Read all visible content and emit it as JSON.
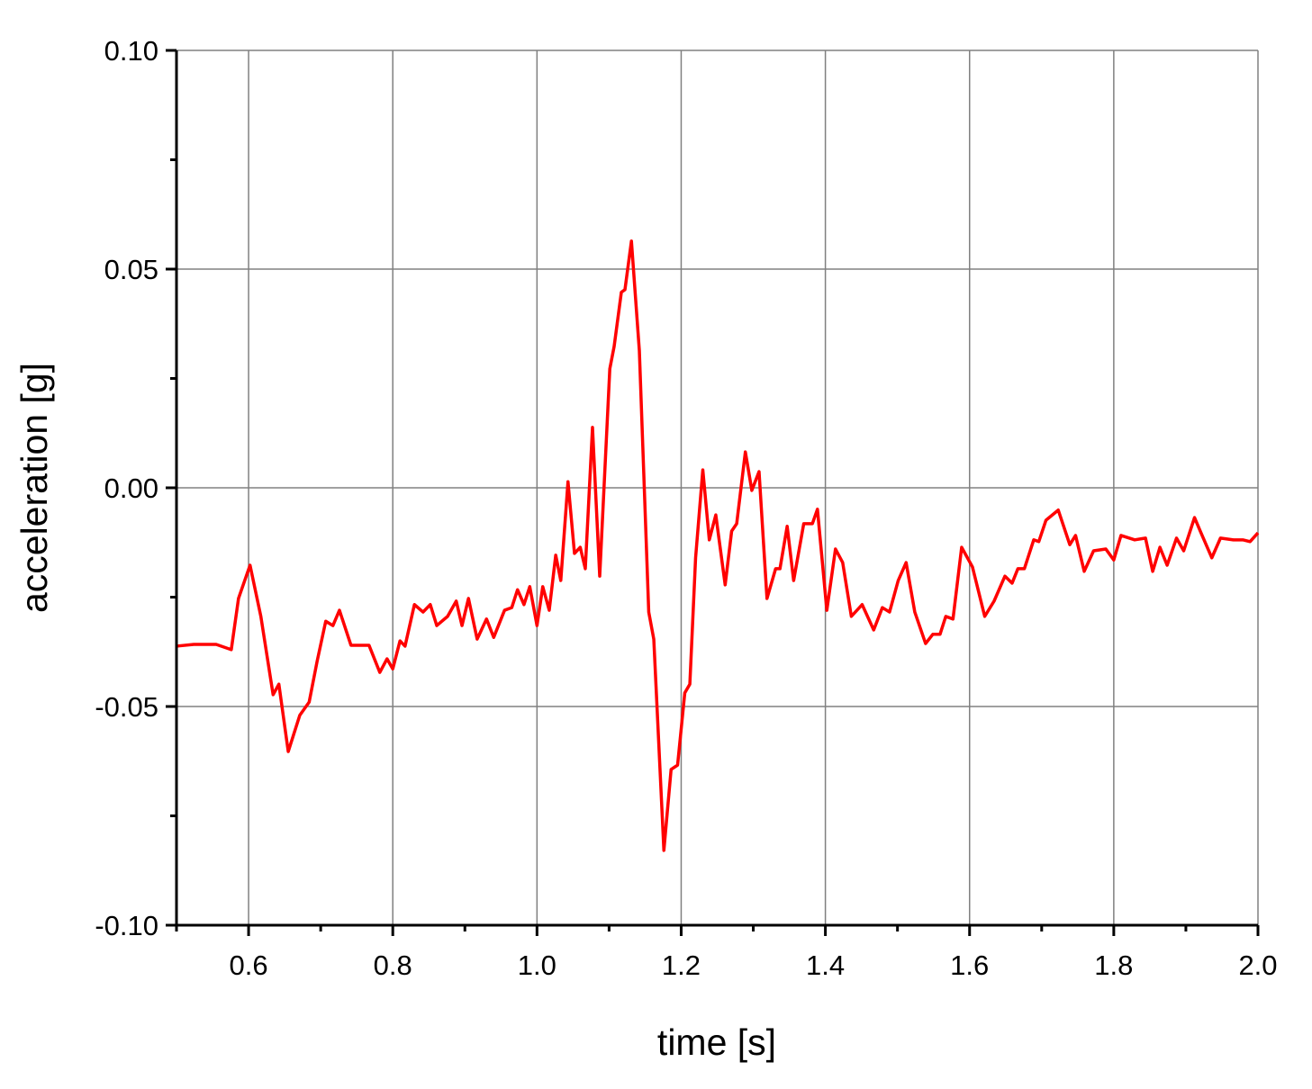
{
  "chart_data": {
    "type": "line",
    "xlabel": "time [s]",
    "ylabel": "acceleration [g]",
    "xlim": [
      0.5,
      2.0
    ],
    "ylim": [
      -0.1,
      0.1
    ],
    "xticks": [
      0.6,
      0.8,
      {
        "value": 1.0,
        "label": "1.0"
      },
      1.2,
      1.4,
      1.6,
      1.8,
      {
        "value": 2.0,
        "label": "2.0"
      }
    ],
    "yticks": [
      {
        "value": -0.1,
        "label": "-0.10"
      },
      {
        "value": -0.05,
        "label": "-0.05"
      },
      {
        "value": 0,
        "label": "0.00"
      },
      {
        "value": 0.05,
        "label": "0.05"
      },
      {
        "value": 0.1,
        "label": "0.10"
      }
    ],
    "xminor_ticks": [
      0.5,
      0.7,
      0.9,
      1.1,
      1.3,
      1.5,
      1.7,
      1.9
    ],
    "yminor_ticks": [
      -0.075,
      -0.025,
      0.025,
      0.075
    ],
    "grid": true,
    "series": [
      {
        "name": "acceleration",
        "color": "#ff0000",
        "x": [
          0.5,
          0.524,
          0.555,
          0.576,
          0.586,
          0.602,
          0.617,
          0.634,
          0.642,
          0.655,
          0.671,
          0.684,
          0.695,
          0.707,
          0.717,
          0.726,
          0.742,
          0.767,
          0.782,
          0.792,
          0.8,
          0.81,
          0.817,
          0.83,
          0.842,
          0.852,
          0.861,
          0.876,
          0.888,
          0.896,
          0.905,
          0.917,
          0.93,
          0.94,
          0.955,
          0.965,
          0.973,
          0.982,
          0.99,
          1.0,
          1.008,
          1.017,
          1.026,
          1.033,
          1.043,
          1.052,
          1.06,
          1.067,
          1.077,
          1.087,
          1.101,
          1.107,
          1.117,
          1.122,
          1.131,
          1.142,
          1.155,
          1.162,
          1.176,
          1.186,
          1.195,
          1.205,
          1.212,
          1.22,
          1.23,
          1.239,
          1.248,
          1.261,
          1.27,
          1.277,
          1.289,
          1.298,
          1.308,
          1.319,
          1.331,
          1.337,
          1.347,
          1.356,
          1.37,
          1.382,
          1.389,
          1.402,
          1.414,
          1.424,
          1.436,
          1.451,
          1.467,
          1.479,
          1.489,
          1.501,
          1.512,
          1.524,
          1.539,
          1.549,
          1.559,
          1.567,
          1.577,
          1.589,
          1.604,
          1.621,
          1.634,
          1.649,
          1.659,
          1.667,
          1.676,
          1.689,
          1.696,
          1.706,
          1.723,
          1.739,
          1.747,
          1.759,
          1.772,
          1.789,
          1.8,
          1.81,
          1.829,
          1.844,
          1.854,
          1.864,
          1.874,
          1.887,
          1.897,
          1.912,
          1.921,
          1.936,
          1.948,
          1.966,
          1.979,
          1.989,
          2.0
        ],
        "values": [
          -0.0362,
          -0.0358,
          -0.0358,
          -0.037,
          -0.0253,
          -0.0177,
          -0.0294,
          -0.0473,
          -0.0449,
          -0.0603,
          -0.052,
          -0.049,
          -0.0397,
          -0.0305,
          -0.0315,
          -0.028,
          -0.036,
          -0.036,
          -0.0422,
          -0.0391,
          -0.0414,
          -0.035,
          -0.0362,
          -0.0267,
          -0.0284,
          -0.0267,
          -0.0315,
          -0.0294,
          -0.0259,
          -0.0315,
          -0.0253,
          -0.0346,
          -0.03,
          -0.0342,
          -0.028,
          -0.0274,
          -0.0233,
          -0.0267,
          -0.0226,
          -0.0315,
          -0.0226,
          -0.028,
          -0.0154,
          -0.0212,
          0.0014,
          -0.015,
          -0.0136,
          -0.0185,
          0.0138,
          -0.0202,
          0.0272,
          0.0323,
          0.0447,
          0.0453,
          0.0564,
          0.0313,
          -0.0284,
          -0.0346,
          -0.0829,
          -0.0644,
          -0.0634,
          -0.0469,
          -0.0449,
          -0.016,
          0.0041,
          -0.0119,
          -0.0062,
          -0.0222,
          -0.0099,
          -0.0082,
          0.0082,
          -0.0006,
          0.0037,
          -0.0253,
          -0.0185,
          -0.0185,
          -0.0088,
          -0.0212,
          -0.0082,
          -0.0082,
          -0.0049,
          -0.028,
          -0.014,
          -0.0171,
          -0.0294,
          -0.0267,
          -0.0325,
          -0.0274,
          -0.0284,
          -0.0212,
          -0.0171,
          -0.0284,
          -0.0356,
          -0.0335,
          -0.0335,
          -0.0294,
          -0.03,
          -0.0136,
          -0.0181,
          -0.0294,
          -0.0259,
          -0.0202,
          -0.0218,
          -0.0185,
          -0.0185,
          -0.0119,
          -0.0123,
          -0.0074,
          -0.0051,
          -0.013,
          -0.0109,
          -0.0191,
          -0.0144,
          -0.014,
          -0.0165,
          -0.0109,
          -0.0119,
          -0.0115,
          -0.0191,
          -0.0136,
          -0.0177,
          -0.0115,
          -0.0144,
          -0.0068,
          -0.0103,
          -0.016,
          -0.0115,
          -0.0119,
          -0.0119,
          -0.0123,
          -0.0103
        ]
      }
    ]
  }
}
